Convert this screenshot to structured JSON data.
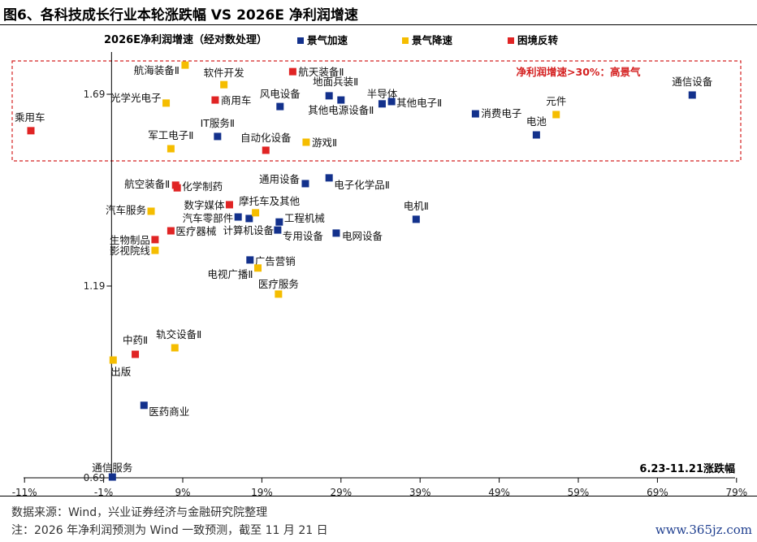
{
  "title": "图6、各科技成长行业本轮涨跌幅  VS 2026E 净利润增速",
  "source": "数据来源：Wind，兴业证券经济与金融研究院整理",
  "note": "注：2026 年净利润预测为 Wind 一致预测，截至 11 月 21 日",
  "watermark": "www.365jz.com",
  "chart_data": {
    "type": "scatter",
    "title": "",
    "xlabel": "6.23-11.21涨跌幅",
    "ylabel": "2026E净利润增速（经对数处理）",
    "xlim": [
      -11,
      79
    ],
    "ylim": [
      0.69,
      1.85
    ],
    "x_ticks": [
      "-11%",
      "-1%",
      "9%",
      "19%",
      "29%",
      "39%",
      "49%",
      "59%",
      "69%",
      "79%"
    ],
    "x_tick_values": [
      -11,
      -1,
      9,
      19,
      29,
      39,
      49,
      59,
      69,
      79
    ],
    "y_ticks": [
      "0.69",
      "1.19",
      "1.69"
    ],
    "y_tick_values": [
      0.69,
      1.19,
      1.69
    ],
    "grid": false,
    "legend_position": "top",
    "highlight_region": {
      "label": "净利润增速>30%：高景气",
      "y_min": 1.5,
      "color": "#d42020"
    },
    "series": [
      {
        "name": "景气加速",
        "color": "#13318c",
        "points": [
          {
            "label": "风电设备",
            "x": 21.3,
            "y": 1.658
          },
          {
            "label": "地面兵装Ⅱ",
            "x": 27.5,
            "y": 1.686
          },
          {
            "label": "其他电源设备Ⅱ",
            "x": 29.0,
            "y": 1.675
          },
          {
            "label": "半导体",
            "x": 34.2,
            "y": 1.665
          },
          {
            "label": "其他电子Ⅱ",
            "x": 35.4,
            "y": 1.671
          },
          {
            "label": "消费电子",
            "x": 46.0,
            "y": 1.639
          },
          {
            "label": "通信设备",
            "x": 73.4,
            "y": 1.688
          },
          {
            "label": "电池",
            "x": 53.7,
            "y": 1.584
          },
          {
            "label": "IT服务Ⅱ",
            "x": 13.4,
            "y": 1.58
          },
          {
            "label": "通用设备",
            "x": 24.5,
            "y": 1.457
          },
          {
            "label": "电子化学品Ⅱ",
            "x": 27.5,
            "y": 1.472
          },
          {
            "label": "汽车零部件",
            "x": 16.0,
            "y": 1.37
          },
          {
            "label": "计算机设备",
            "x": 17.4,
            "y": 1.366
          },
          {
            "label": "工程机械",
            "x": 21.2,
            "y": 1.357
          },
          {
            "label": "专用设备",
            "x": 21.0,
            "y": 1.336
          },
          {
            "label": "电网设备",
            "x": 28.4,
            "y": 1.328
          },
          {
            "label": "电机Ⅱ",
            "x": 38.5,
            "y": 1.364
          },
          {
            "label": "广告营销",
            "x": 17.5,
            "y": 1.258
          },
          {
            "label": "医药商业",
            "x": 4.1,
            "y": 0.879
          },
          {
            "label": "通信服务",
            "x": 0.1,
            "y": 0.692
          }
        ]
      },
      {
        "name": "景气降速",
        "color": "#f5bd00",
        "points": [
          {
            "label": "航海装备Ⅱ",
            "x": 9.3,
            "y": 1.766
          },
          {
            "label": "光学光电子",
            "x": 6.9,
            "y": 1.667
          },
          {
            "label": "软件开发",
            "x": 14.2,
            "y": 1.715
          },
          {
            "label": "元件",
            "x": 56.2,
            "y": 1.637
          },
          {
            "label": "军工电子Ⅱ",
            "x": 7.5,
            "y": 1.548
          },
          {
            "label": "游戏Ⅱ",
            "x": 24.6,
            "y": 1.565
          },
          {
            "label": "摩托车及其他",
            "x": 18.2,
            "y": 1.381
          },
          {
            "label": "汽车服务",
            "x": 5.0,
            "y": 1.385
          },
          {
            "label": "影视院线",
            "x": 5.5,
            "y": 1.283
          },
          {
            "label": "电视广播Ⅱ",
            "x": 18.5,
            "y": 1.237
          },
          {
            "label": "医疗服务",
            "x": 21.1,
            "y": 1.169
          },
          {
            "label": "轨交设备Ⅱ",
            "x": 8.0,
            "y": 1.029
          },
          {
            "label": "出版",
            "x": 0.2,
            "y": 0.997
          }
        ]
      },
      {
        "name": "困境反转",
        "color": "#e02424",
        "points": [
          {
            "label": "乘用车",
            "x": -10.2,
            "y": 1.595
          },
          {
            "label": "商用车",
            "x": 13.1,
            "y": 1.675
          },
          {
            "label": "航天装备Ⅱ",
            "x": 22.9,
            "y": 1.749
          },
          {
            "label": "自动化设备",
            "x": 19.5,
            "y": 1.544
          },
          {
            "label": "航空装备Ⅱ",
            "x": 8.1,
            "y": 1.453
          },
          {
            "label": "化学制药",
            "x": 8.3,
            "y": 1.446
          },
          {
            "label": "数字媒体",
            "x": 14.9,
            "y": 1.402
          },
          {
            "label": "医疗器械",
            "x": 7.5,
            "y": 1.334
          },
          {
            "label": "生物制品",
            "x": 5.5,
            "y": 1.311
          },
          {
            "label": "中药Ⅱ",
            "x": 3.0,
            "y": 1.012
          }
        ]
      }
    ]
  }
}
